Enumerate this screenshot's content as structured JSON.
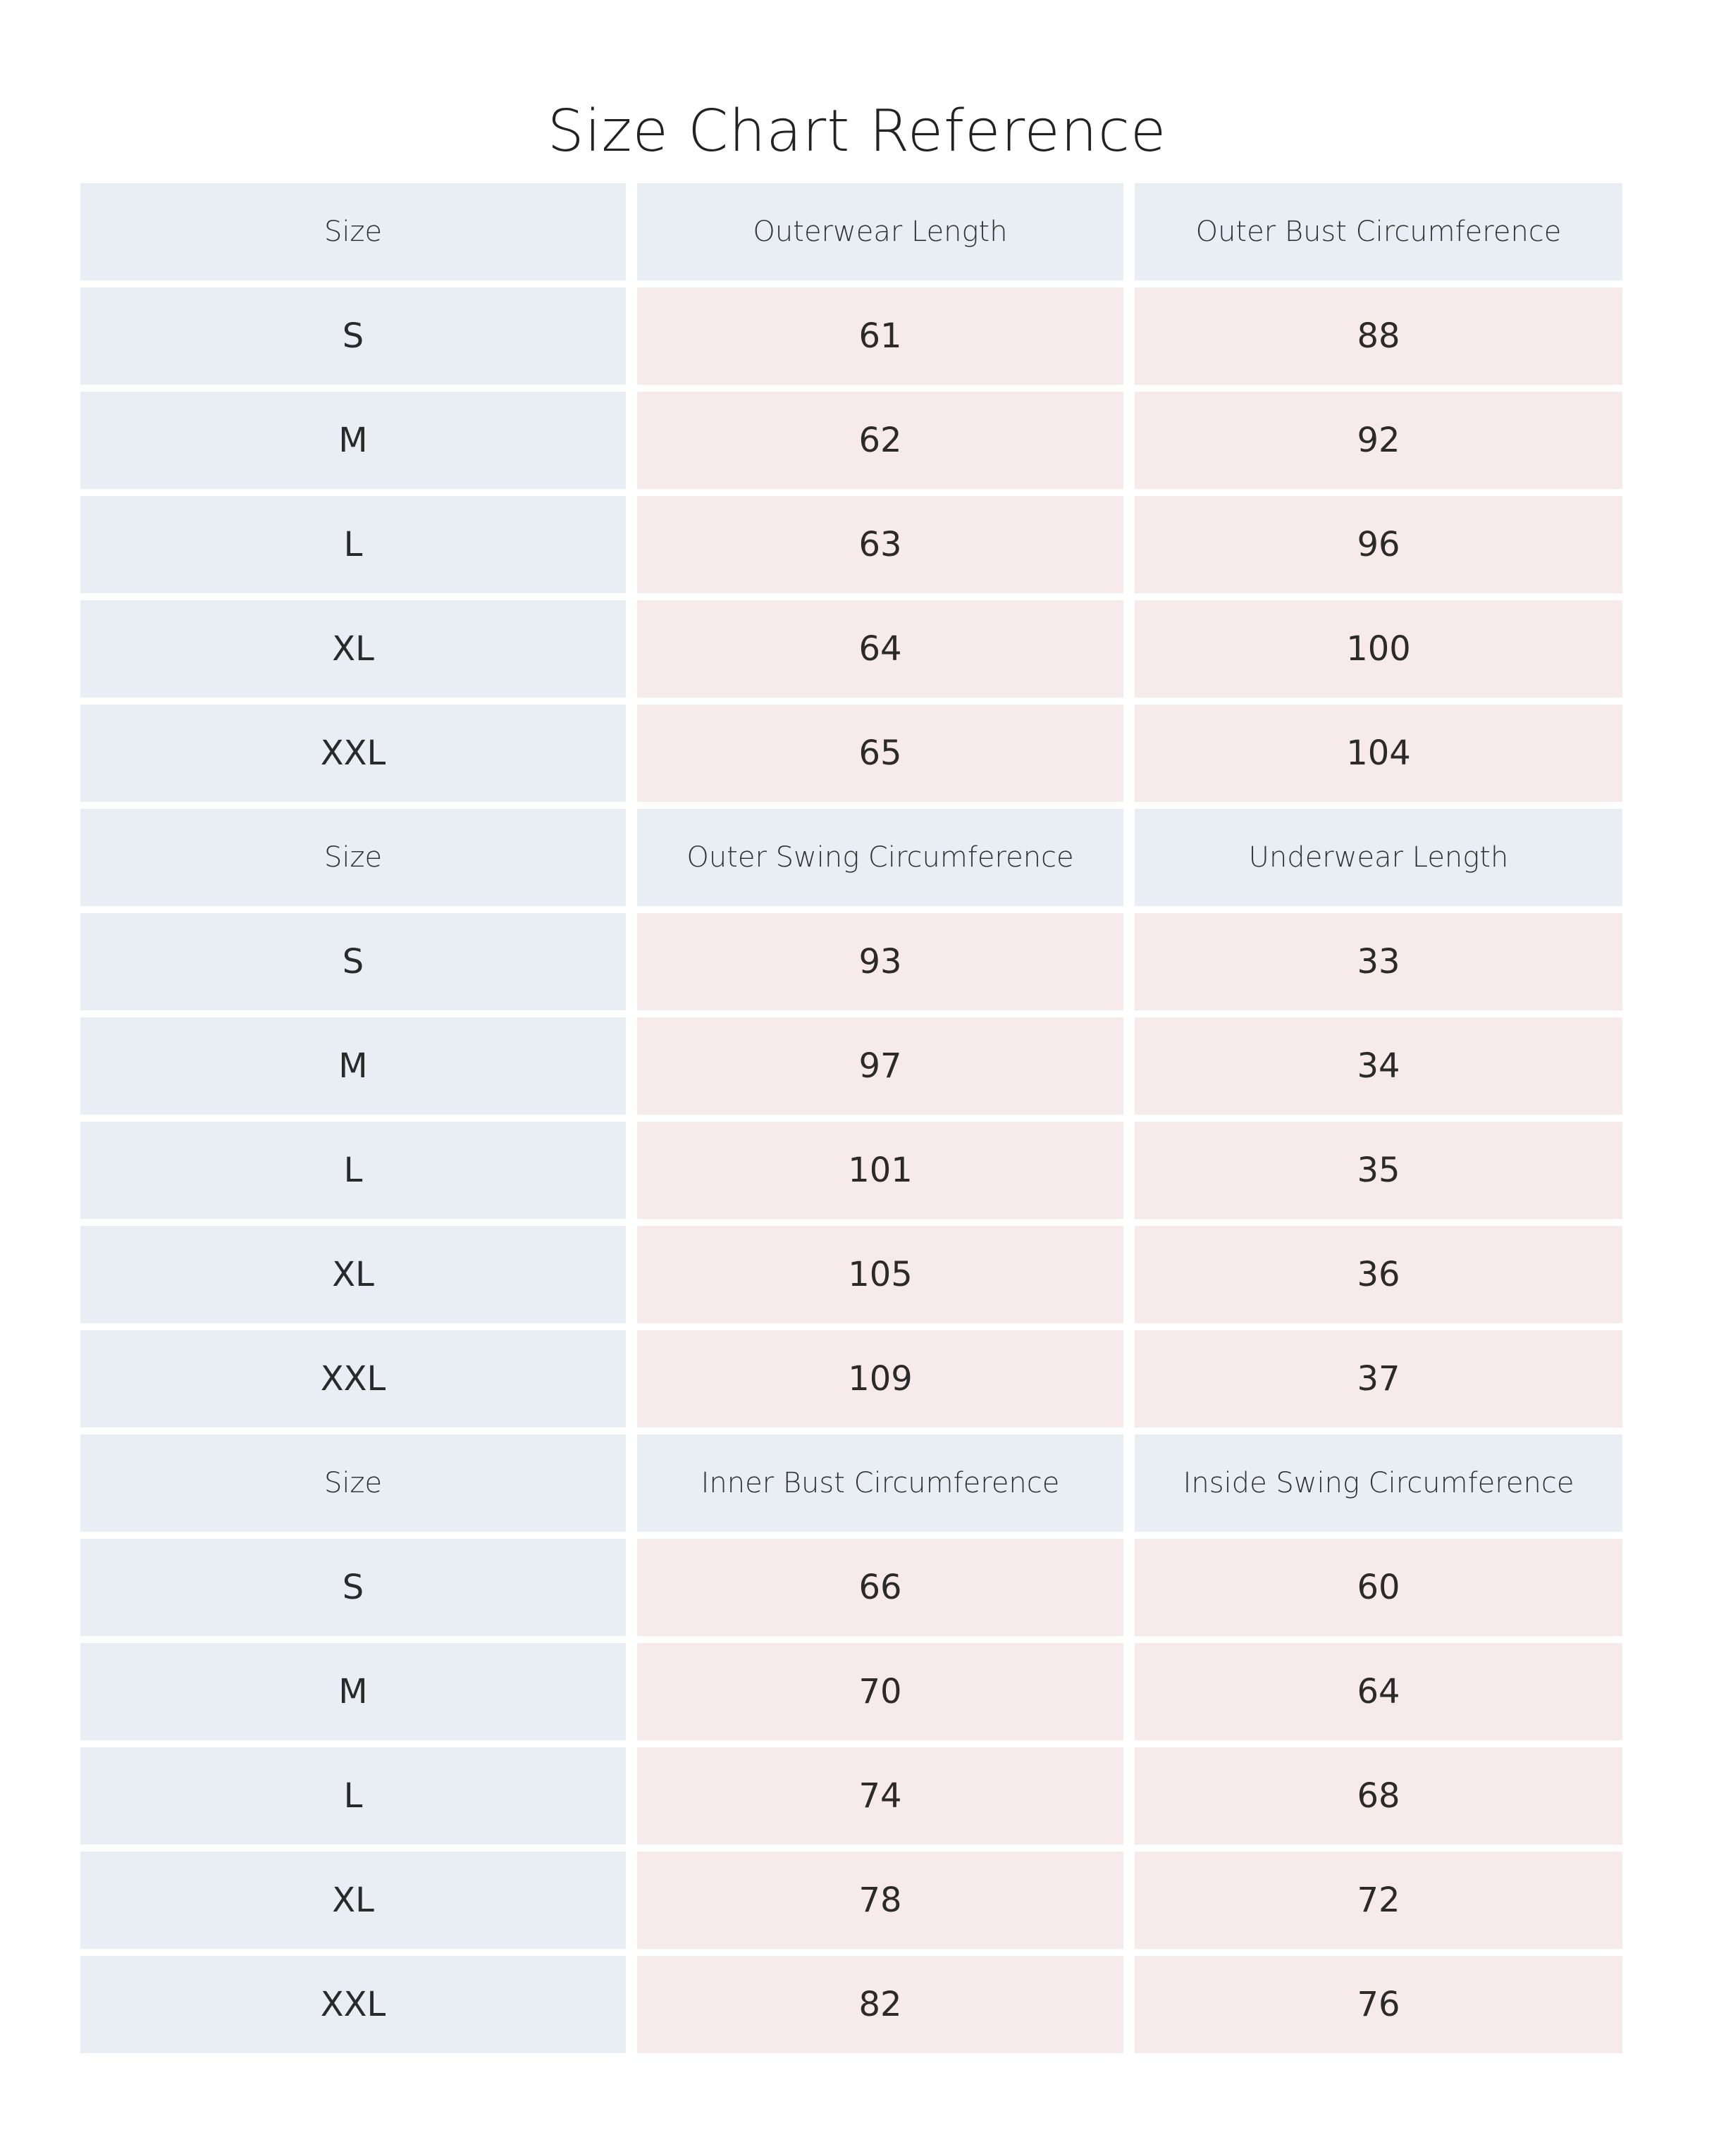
{
  "title": "Size Chart Reference",
  "colors": {
    "header_bg": "#e9eef5",
    "size_bg": "#e9eef5",
    "value_bg": "#f6eaea",
    "text": "#2a2a2a"
  },
  "sections": [
    {
      "headers": [
        "Size",
        "Outerwear Length",
        "Outer Bust Circumference"
      ],
      "rows": [
        [
          "S",
          "61",
          "88"
        ],
        [
          "M",
          "62",
          "92"
        ],
        [
          "L",
          "63",
          "96"
        ],
        [
          "XL",
          "64",
          "100"
        ],
        [
          "XXL",
          "65",
          "104"
        ]
      ]
    },
    {
      "headers": [
        "Size",
        "Outer Swing Circumference",
        "Underwear Length"
      ],
      "rows": [
        [
          "S",
          "93",
          "33"
        ],
        [
          "M",
          "97",
          "34"
        ],
        [
          "L",
          "101",
          "35"
        ],
        [
          "XL",
          "105",
          "36"
        ],
        [
          "XXL",
          "109",
          "37"
        ]
      ]
    },
    {
      "headers": [
        "Size",
        "Inner Bust Circumference",
        "Inside Swing Circumference"
      ],
      "rows": [
        [
          "S",
          "66",
          "60"
        ],
        [
          "M",
          "70",
          "64"
        ],
        [
          "L",
          "74",
          "68"
        ],
        [
          "XL",
          "78",
          "72"
        ],
        [
          "XXL",
          "82",
          "76"
        ]
      ]
    }
  ]
}
